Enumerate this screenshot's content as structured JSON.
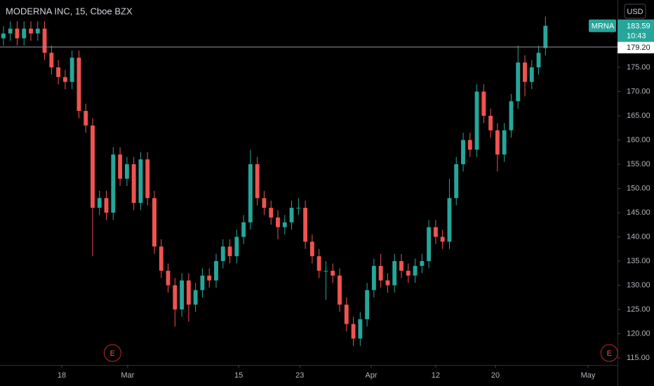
{
  "chart_data": {
    "type": "candlestick",
    "title": "MODERNA INC, 15, Cboe BZX",
    "currency": "USD",
    "symbol_tag": "MRNA",
    "countdown": "10:43",
    "up_color": "#26a69a",
    "down_color": "#ef5350",
    "grid": false,
    "open": [
      181,
      182,
      183,
      181,
      183,
      182,
      183,
      178,
      175,
      173,
      172,
      177,
      166,
      163,
      146,
      148,
      145,
      157,
      152,
      155,
      147,
      156,
      148,
      138,
      133,
      130,
      125,
      131,
      126,
      129,
      132,
      131,
      135,
      138,
      136,
      140,
      143,
      155,
      148,
      146,
      144,
      142,
      143,
      146,
      146,
      139,
      136,
      133,
      133,
      132,
      126,
      122,
      119,
      123,
      129,
      134,
      131,
      130,
      135,
      133,
      132,
      134,
      135,
      142,
      140,
      139,
      148,
      155,
      160,
      158,
      170,
      165,
      162,
      157,
      162,
      168,
      176,
      172,
      175,
      179
    ],
    "high": [
      183.5,
      184.5,
      184.5,
      184.5,
      184.5,
      184.5,
      184.5,
      179.5,
      176.5,
      174.5,
      178.5,
      178.5,
      167.5,
      164.5,
      149.5,
      149.5,
      158.5,
      158.5,
      156.5,
      156.5,
      157.5,
      157.5,
      149.5,
      139.5,
      134.5,
      131.5,
      132.5,
      132.5,
      130.5,
      133.5,
      133.5,
      136.5,
      139.5,
      139.5,
      141.5,
      144.5,
      158,
      156.5,
      149.5,
      147.5,
      145.5,
      144.5,
      147.5,
      148,
      147.5,
      140.5,
      137.5,
      135,
      134.5,
      133.5,
      127.5,
      123.5,
      124.5,
      130.5,
      135.5,
      136.5,
      132.5,
      136.5,
      136.5,
      134.5,
      135.5,
      136.5,
      143.5,
      143.5,
      141.5,
      152,
      156.5,
      161.5,
      161.5,
      171.5,
      171.5,
      166.5,
      163.5,
      163.5,
      169.5,
      179.5,
      177.5,
      176.5,
      179.5,
      185.5
    ],
    "low": [
      179.5,
      180.5,
      179.5,
      179.5,
      180.5,
      180.5,
      176.5,
      173.5,
      171.5,
      170.5,
      170.5,
      164.5,
      161.5,
      136,
      144.5,
      143.5,
      143.5,
      150.5,
      150.5,
      145.5,
      145.5,
      146.5,
      136.5,
      131.5,
      128.5,
      121.5,
      123.5,
      122.5,
      124.5,
      127.5,
      129.5,
      129.5,
      133.5,
      134.5,
      134.5,
      138.5,
      141.5,
      146.5,
      144.5,
      142.5,
      139.5,
      140.5,
      141.5,
      144.5,
      137.5,
      134.5,
      131.5,
      127,
      130.5,
      124.5,
      120.5,
      117.5,
      117.5,
      121.5,
      127.5,
      129.5,
      128.5,
      128.5,
      131.5,
      130.5,
      130.5,
      132.5,
      133.5,
      138.5,
      137.5,
      137.5,
      146.5,
      153.5,
      156.5,
      156.5,
      163.5,
      160.5,
      153.5,
      155.5,
      160.5,
      166.5,
      169,
      170.5,
      173.5,
      177.5
    ],
    "close": [
      182,
      183,
      181,
      183,
      182,
      183,
      178,
      175,
      173,
      172,
      177,
      166,
      163,
      146,
      148,
      145,
      157,
      152,
      155,
      147,
      156,
      148,
      138,
      133,
      130,
      125,
      131,
      126,
      129,
      132,
      131,
      135,
      138,
      136,
      140,
      143,
      155,
      148,
      146,
      144,
      142,
      143,
      146,
      146,
      139,
      136,
      133,
      133,
      132,
      126,
      122,
      119,
      123,
      129,
      134,
      131,
      130,
      135,
      133,
      132,
      134,
      135,
      142,
      140,
      139,
      148,
      155,
      160,
      158,
      170,
      165,
      162,
      157,
      162,
      168,
      176,
      172,
      175,
      178,
      183.59
    ],
    "xlim": [
      -0.5,
      89.5
    ],
    "xticks": [
      {
        "value": 8.5,
        "label": "18"
      },
      {
        "value": 18.1,
        "label": "Mar"
      },
      {
        "value": 34.3,
        "label": "15"
      },
      {
        "value": 43.2,
        "label": "23"
      },
      {
        "value": 53.6,
        "label": "Apr"
      },
      {
        "value": 63,
        "label": "12"
      },
      {
        "value": 71.7,
        "label": "20"
      },
      {
        "value": 85.2,
        "label": "May"
      }
    ],
    "ylim": [
      113.55,
      188.91
    ],
    "yticks": [
      {
        "value": 115,
        "label": "115.00"
      },
      {
        "value": 120,
        "label": "120.00"
      },
      {
        "value": 125,
        "label": "125.00"
      },
      {
        "value": 130,
        "label": "130.00"
      },
      {
        "value": 135,
        "label": "135.00"
      },
      {
        "value": 140,
        "label": "140.00"
      },
      {
        "value": 145,
        "label": "145.00"
      },
      {
        "value": 150,
        "label": "150.00"
      },
      {
        "value": 155,
        "label": "155.00"
      },
      {
        "value": 160,
        "label": "160.00"
      },
      {
        "value": 165,
        "label": "165.00"
      },
      {
        "value": 170,
        "label": "170.00"
      },
      {
        "value": 175,
        "label": "175.00"
      }
    ],
    "hline": {
      "value": 179.2,
      "label": "179.20"
    },
    "events": [
      {
        "label": "E",
        "x": 15.9
      },
      {
        "label": "E",
        "x": 88.3
      }
    ]
  }
}
